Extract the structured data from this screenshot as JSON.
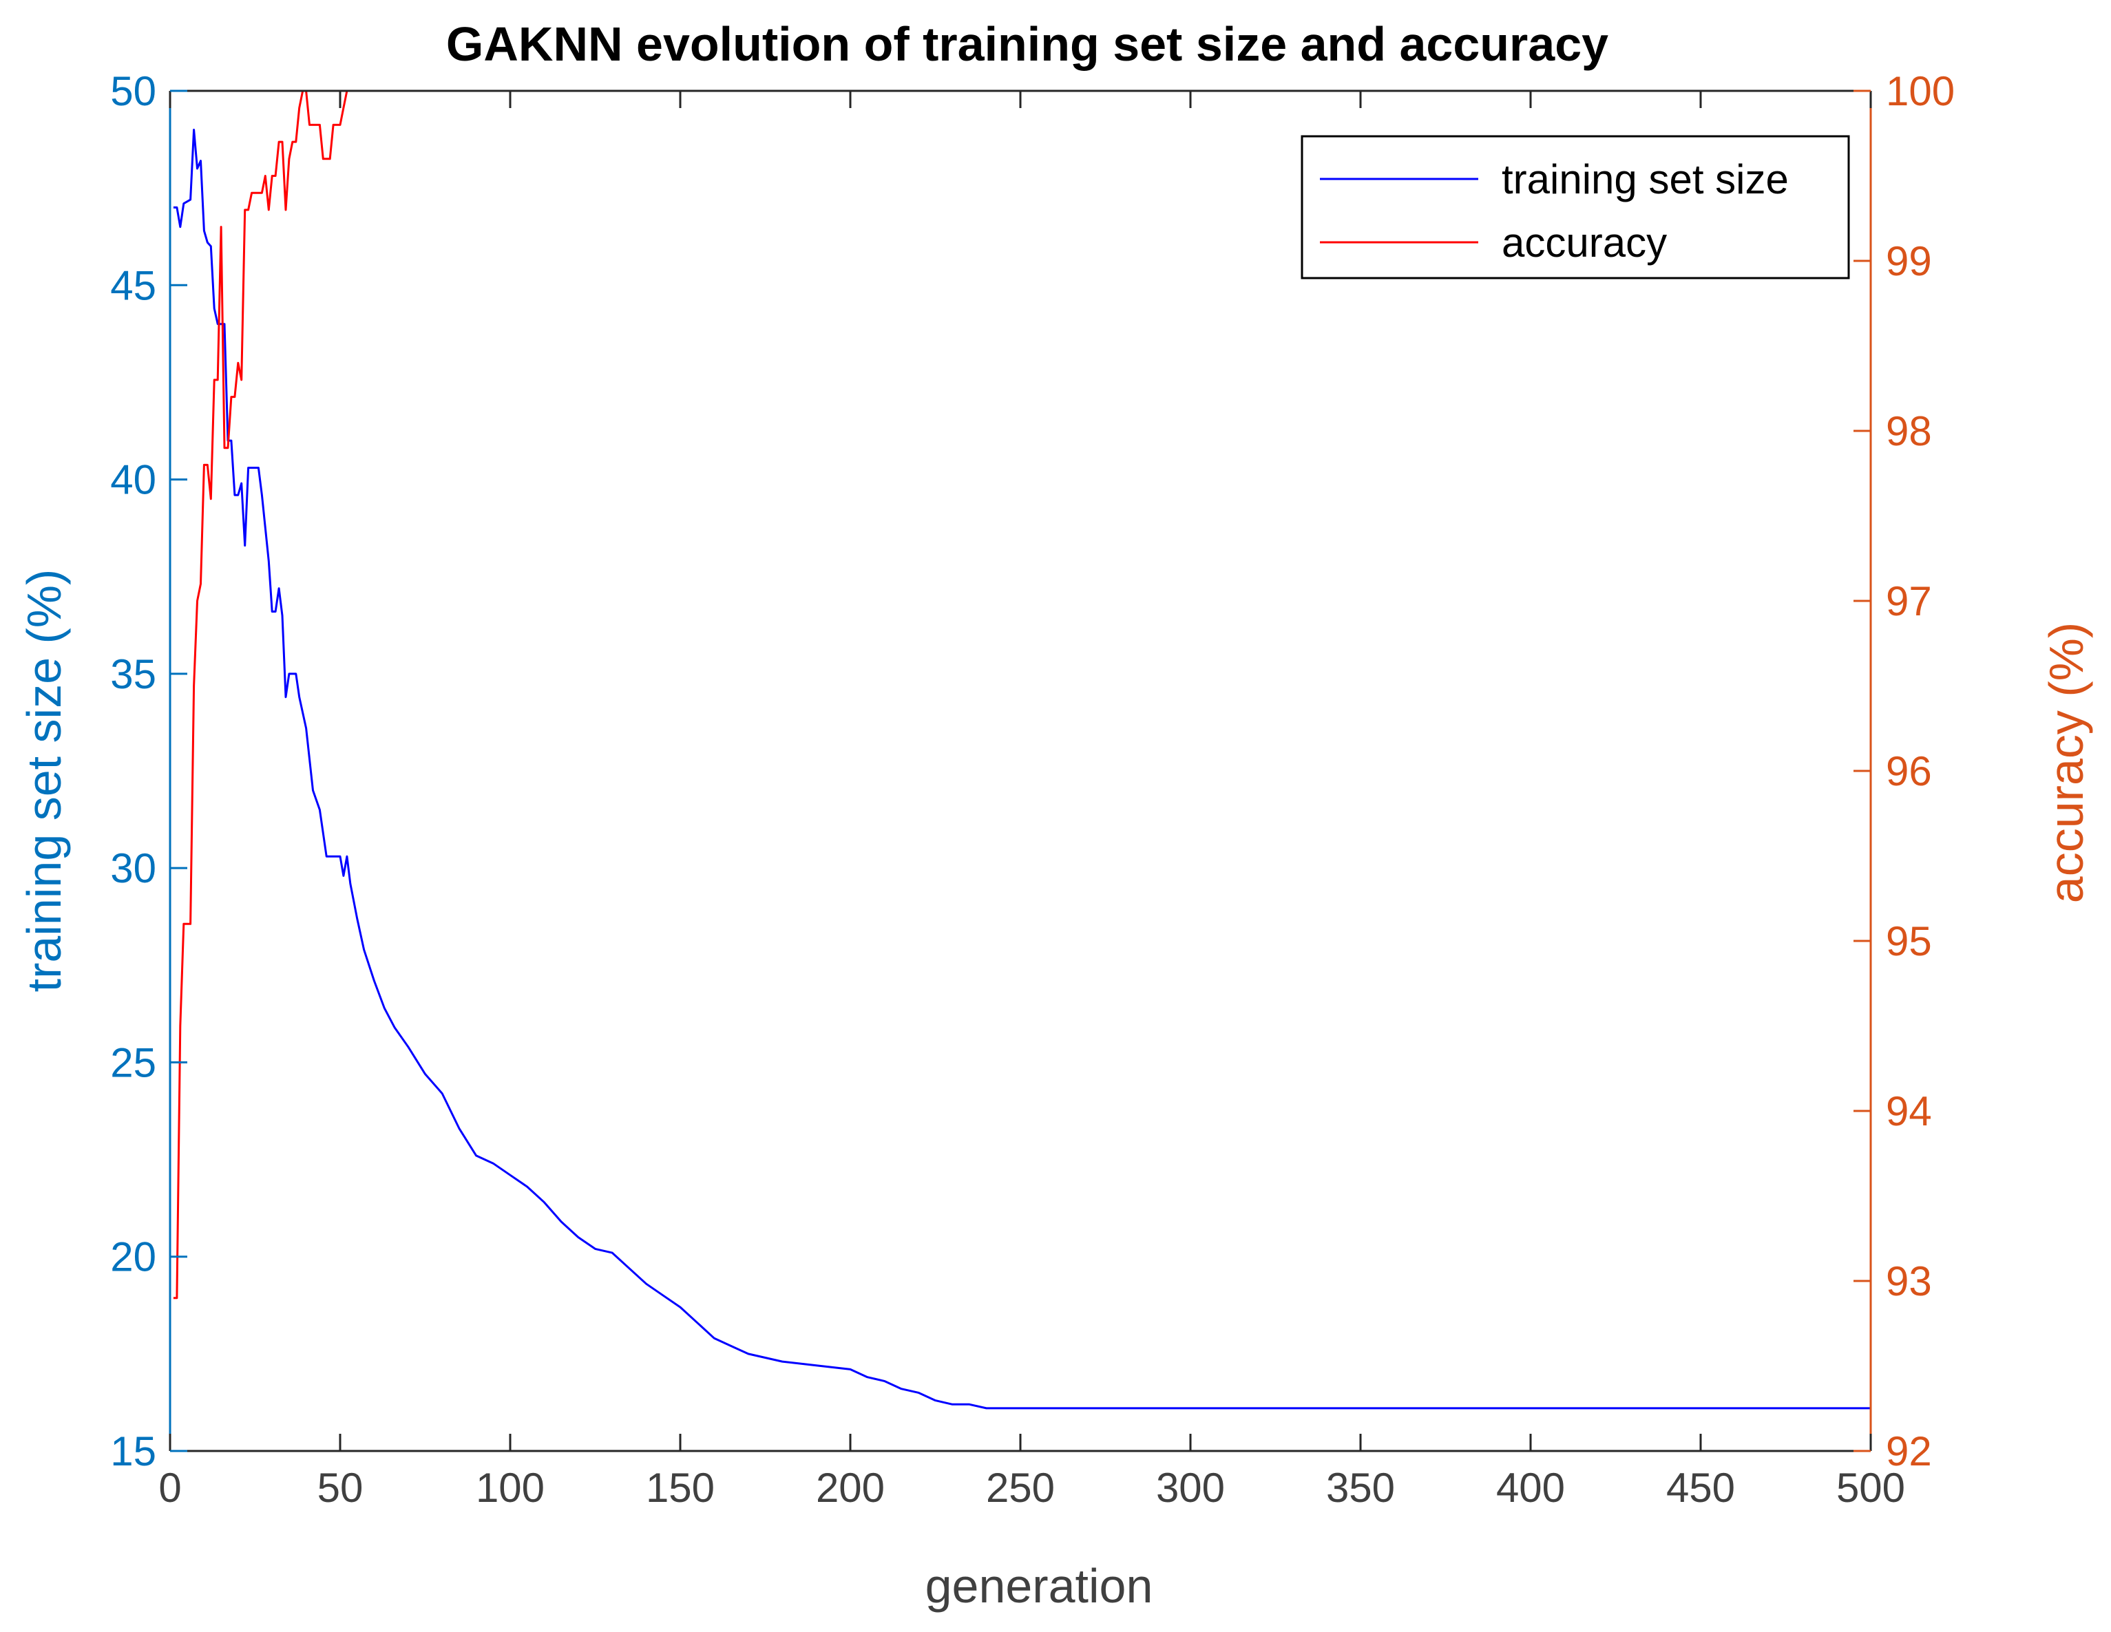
{
  "chart_data": {
    "type": "line",
    "title": "GAKNN evolution of training set size and accuracy",
    "xlabel": "generation",
    "ylabel_left": "training set size (%)",
    "ylabel_right": "accuracy (%)",
    "xlim": [
      0,
      500
    ],
    "ylim_left": [
      15,
      50
    ],
    "ylim_right": [
      92,
      100
    ],
    "xticks": [
      0,
      50,
      100,
      150,
      200,
      250,
      300,
      350,
      400,
      450,
      500
    ],
    "yticks_left": [
      15,
      20,
      25,
      30,
      35,
      40,
      45,
      50
    ],
    "yticks_right": [
      92,
      93,
      94,
      95,
      96,
      97,
      98,
      99,
      100
    ],
    "grid": false,
    "legend_position": "top-right",
    "colors": {
      "left_axis": "#0072BD",
      "right_axis": "#D95319",
      "training_set_size": "#0000FF",
      "accuracy": "#FF0000"
    },
    "series": [
      {
        "name": "training set size",
        "axis": "left",
        "color": "#0000FF",
        "x": [
          1,
          2,
          3,
          4,
          6,
          7,
          8,
          9,
          10,
          11,
          12,
          13,
          14,
          15,
          16,
          17,
          18,
          19,
          20,
          21,
          22,
          23,
          24,
          26,
          27,
          29,
          30,
          31,
          32,
          33,
          34,
          35,
          36,
          37,
          38,
          40,
          42,
          44,
          46,
          48,
          50,
          51,
          52,
          53,
          55,
          57,
          60,
          63,
          66,
          70,
          75,
          80,
          85,
          90,
          95,
          100,
          105,
          110,
          115,
          120,
          125,
          130,
          135,
          140,
          145,
          150,
          155,
          160,
          165,
          170,
          180,
          190,
          200,
          205,
          210,
          215,
          220,
          225,
          230,
          235,
          240,
          243,
          500
        ],
        "values": [
          47,
          47,
          46.5,
          47.1,
          47.2,
          49,
          48,
          48.2,
          46.4,
          46.1,
          46,
          44.4,
          44,
          44,
          44,
          41,
          41,
          39.6,
          39.6,
          39.9,
          38.3,
          40.3,
          40.3,
          40.3,
          39.6,
          37.9,
          36.6,
          36.6,
          37.2,
          36.5,
          34.4,
          35,
          35,
          35,
          34.4,
          33.6,
          32,
          31.5,
          30.3,
          30.3,
          30.3,
          29.8,
          30.3,
          29.6,
          28.7,
          27.9,
          27.1,
          26.4,
          25.9,
          25.4,
          24.7,
          24.2,
          23.3,
          22.6,
          22.4,
          22.1,
          21.8,
          21.4,
          20.9,
          20.5,
          20.2,
          20.1,
          19.7,
          19.3,
          19,
          18.7,
          18.3,
          17.9,
          17.7,
          17.5,
          17.3,
          17.2,
          17.1,
          16.9,
          16.8,
          16.6,
          16.5,
          16.3,
          16.2,
          16.2,
          16.1,
          16.1,
          16.1
        ]
      },
      {
        "name": "accuracy",
        "axis": "right",
        "color": "#FF0000",
        "x": [
          1,
          2,
          3,
          4,
          5,
          6,
          7,
          8,
          9,
          10,
          11,
          12,
          13,
          14,
          15,
          16,
          17,
          18,
          19,
          20,
          21,
          22,
          23,
          24,
          25,
          26,
          27,
          28,
          29,
          30,
          31,
          32,
          33,
          34,
          35,
          36,
          37,
          38,
          39,
          40,
          41,
          42,
          43,
          44,
          45,
          46,
          47,
          48,
          49,
          50,
          51,
          52,
          53,
          500
        ],
        "values": [
          92.9,
          92.9,
          94.5,
          95.1,
          95.1,
          95.1,
          96.5,
          97,
          97.1,
          97.8,
          97.8,
          97.6,
          98.3,
          98.3,
          99.2,
          97.9,
          97.9,
          98.2,
          98.2,
          98.4,
          98.3,
          99.3,
          99.3,
          99.4,
          99.4,
          99.4,
          99.4,
          99.5,
          99.3,
          99.5,
          99.5,
          99.7,
          99.7,
          99.3,
          99.6,
          99.7,
          99.7,
          99.9,
          100,
          100,
          99.8,
          99.8,
          99.8,
          99.8,
          99.6,
          99.6,
          99.6,
          99.8,
          99.8,
          99.8,
          99.9,
          100,
          100,
          100
        ]
      }
    ]
  }
}
